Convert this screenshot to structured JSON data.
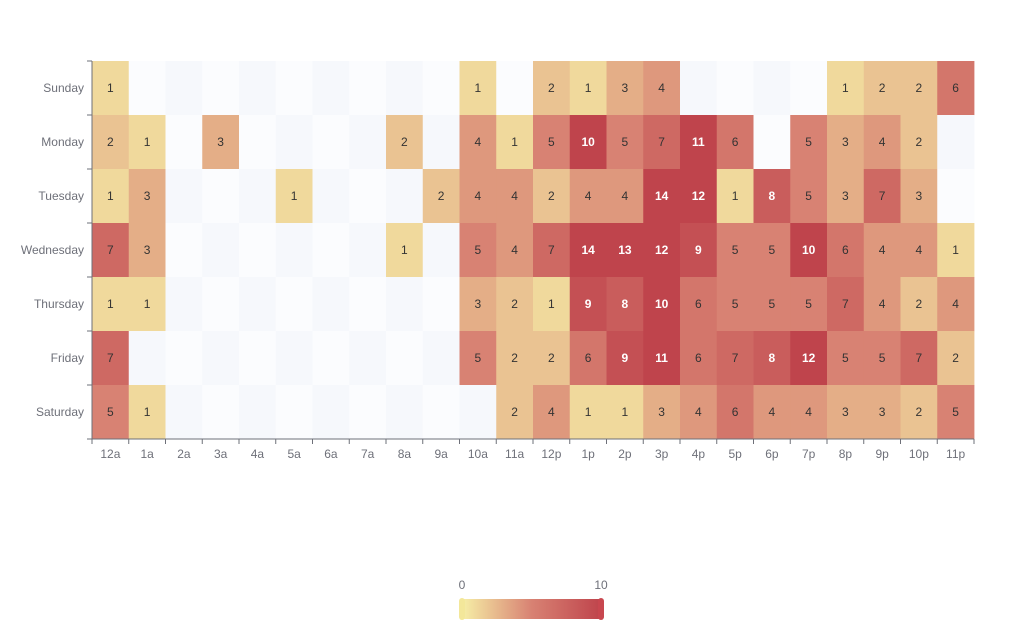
{
  "chart_data": {
    "type": "heatmap",
    "title": "",
    "xlabel": "",
    "ylabel": "",
    "x_categories": [
      "12a",
      "1a",
      "2a",
      "3a",
      "4a",
      "5a",
      "6a",
      "7a",
      "8a",
      "9a",
      "10a",
      "11a",
      "12p",
      "1p",
      "2p",
      "3p",
      "4p",
      "5p",
      "6p",
      "7p",
      "8p",
      "9p",
      "10p",
      "11p"
    ],
    "y_categories": [
      "Sunday",
      "Monday",
      "Tuesday",
      "Wednesday",
      "Thursday",
      "Friday",
      "Saturday"
    ],
    "values": [
      [
        1,
        0,
        0,
        0,
        0,
        0,
        0,
        0,
        0,
        0,
        1,
        0,
        2,
        1,
        3,
        4,
        0,
        0,
        0,
        0,
        1,
        2,
        2,
        6
      ],
      [
        2,
        1,
        0,
        3,
        0,
        0,
        0,
        0,
        2,
        0,
        4,
        1,
        5,
        10,
        5,
        7,
        11,
        6,
        0,
        5,
        3,
        4,
        2,
        0
      ],
      [
        1,
        3,
        0,
        0,
        0,
        1,
        0,
        0,
        0,
        2,
        4,
        4,
        2,
        4,
        4,
        14,
        12,
        1,
        8,
        5,
        3,
        7,
        3,
        0
      ],
      [
        7,
        3,
        0,
        0,
        0,
        0,
        0,
        0,
        1,
        0,
        5,
        4,
        7,
        14,
        13,
        12,
        9,
        5,
        5,
        10,
        6,
        4,
        4,
        1
      ],
      [
        1,
        1,
        0,
        0,
        0,
        0,
        0,
        0,
        0,
        0,
        3,
        2,
        1,
        9,
        8,
        10,
        6,
        5,
        5,
        5,
        7,
        4,
        2,
        4
      ],
      [
        7,
        0,
        0,
        0,
        0,
        0,
        0,
        0,
        0,
        0,
        5,
        2,
        2,
        6,
        9,
        11,
        6,
        7,
        8,
        12,
        5,
        5,
        7,
        2
      ],
      [
        5,
        1,
        0,
        0,
        0,
        0,
        0,
        0,
        0,
        0,
        0,
        2,
        4,
        1,
        1,
        3,
        4,
        6,
        4,
        4,
        3,
        3,
        2,
        5
      ]
    ],
    "visual_map": {
      "min": 0,
      "max": 10,
      "min_label": "0",
      "max_label": "10",
      "colors": [
        "#f6efa6",
        "#d88273",
        "#bf444c"
      ]
    }
  }
}
